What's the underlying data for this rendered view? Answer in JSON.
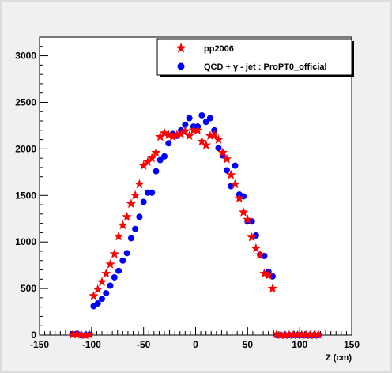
{
  "chart_data": {
    "type": "scatter",
    "title": "",
    "xlabel": "Z (cm)",
    "ylabel": "",
    "xlim": [
      -150,
      150
    ],
    "ylim": [
      0,
      3200
    ],
    "xticks": [
      -150,
      -100,
      -50,
      0,
      50,
      100,
      150
    ],
    "yticks": [
      0,
      500,
      1000,
      1500,
      2000,
      2500,
      3000
    ],
    "grid": false,
    "legend_position": "top-right",
    "series": [
      {
        "name": "pp2006",
        "marker": "star",
        "color": "#ff0000",
        "x": [
          -118,
          -114,
          -110,
          -106,
          -102,
          -98,
          -94,
          -90,
          -86,
          -82,
          -78,
          -74,
          -70,
          -66,
          -62,
          -58,
          -54,
          -50,
          -46,
          -42,
          -38,
          -34,
          -30,
          -26,
          -22,
          -18,
          -14,
          -10,
          -6,
          -2,
          2,
          6,
          10,
          14,
          18,
          22,
          26,
          30,
          34,
          38,
          42,
          46,
          50,
          54,
          58,
          62,
          66,
          70,
          74,
          78,
          82,
          86,
          90,
          94,
          98,
          102,
          106,
          110,
          114,
          118
        ],
        "y": [
          5,
          10,
          5,
          0,
          5,
          420,
          490,
          570,
          660,
          760,
          870,
          1060,
          1180,
          1270,
          1410,
          1500,
          1620,
          1820,
          1860,
          1900,
          1960,
          2130,
          2170,
          2150,
          2130,
          2150,
          2160,
          2190,
          2140,
          2200,
          2200,
          2080,
          2040,
          2140,
          2150,
          2100,
          1960,
          1890,
          1720,
          1620,
          1470,
          1320,
          1240,
          1050,
          930,
          860,
          660,
          640,
          500,
          10,
          0,
          0,
          0,
          0,
          0,
          0,
          0,
          0,
          0,
          5
        ],
        "note": "values read approximately from plot"
      },
      {
        "name": "QCD + γ - jet : ProPT0_official",
        "marker": "circle",
        "color": "#0000ff",
        "x": [
          -118,
          -114,
          -110,
          -106,
          -102,
          -98,
          -94,
          -90,
          -86,
          -82,
          -78,
          -74,
          -70,
          -66,
          -62,
          -58,
          -54,
          -50,
          -46,
          -42,
          -38,
          -34,
          -30,
          -26,
          -22,
          -18,
          -14,
          -10,
          -6,
          -2,
          2,
          6,
          10,
          14,
          18,
          22,
          26,
          30,
          34,
          38,
          42,
          46,
          50,
          54,
          58,
          62,
          66,
          70,
          74,
          78,
          82,
          86,
          90,
          94,
          98,
          102,
          106,
          110,
          114,
          118
        ],
        "y": [
          10,
          15,
          0,
          0,
          5,
          310,
          340,
          390,
          450,
          530,
          620,
          690,
          800,
          880,
          1040,
          1140,
          1270,
          1430,
          1530,
          1530,
          1760,
          1880,
          1920,
          2060,
          2160,
          2140,
          2200,
          2260,
          2330,
          2240,
          2240,
          2360,
          2290,
          2330,
          2200,
          2010,
          1930,
          1770,
          1600,
          1820,
          1510,
          1490,
          1220,
          1220,
          1070,
          860,
          850,
          680,
          630,
          0,
          0,
          0,
          0,
          0,
          0,
          0,
          0,
          0,
          0,
          0
        ]
      }
    ]
  },
  "legend": {
    "entries": [
      {
        "label": "pp2006"
      },
      {
        "label": "QCD + γ - jet : ProPT0_official"
      }
    ]
  }
}
